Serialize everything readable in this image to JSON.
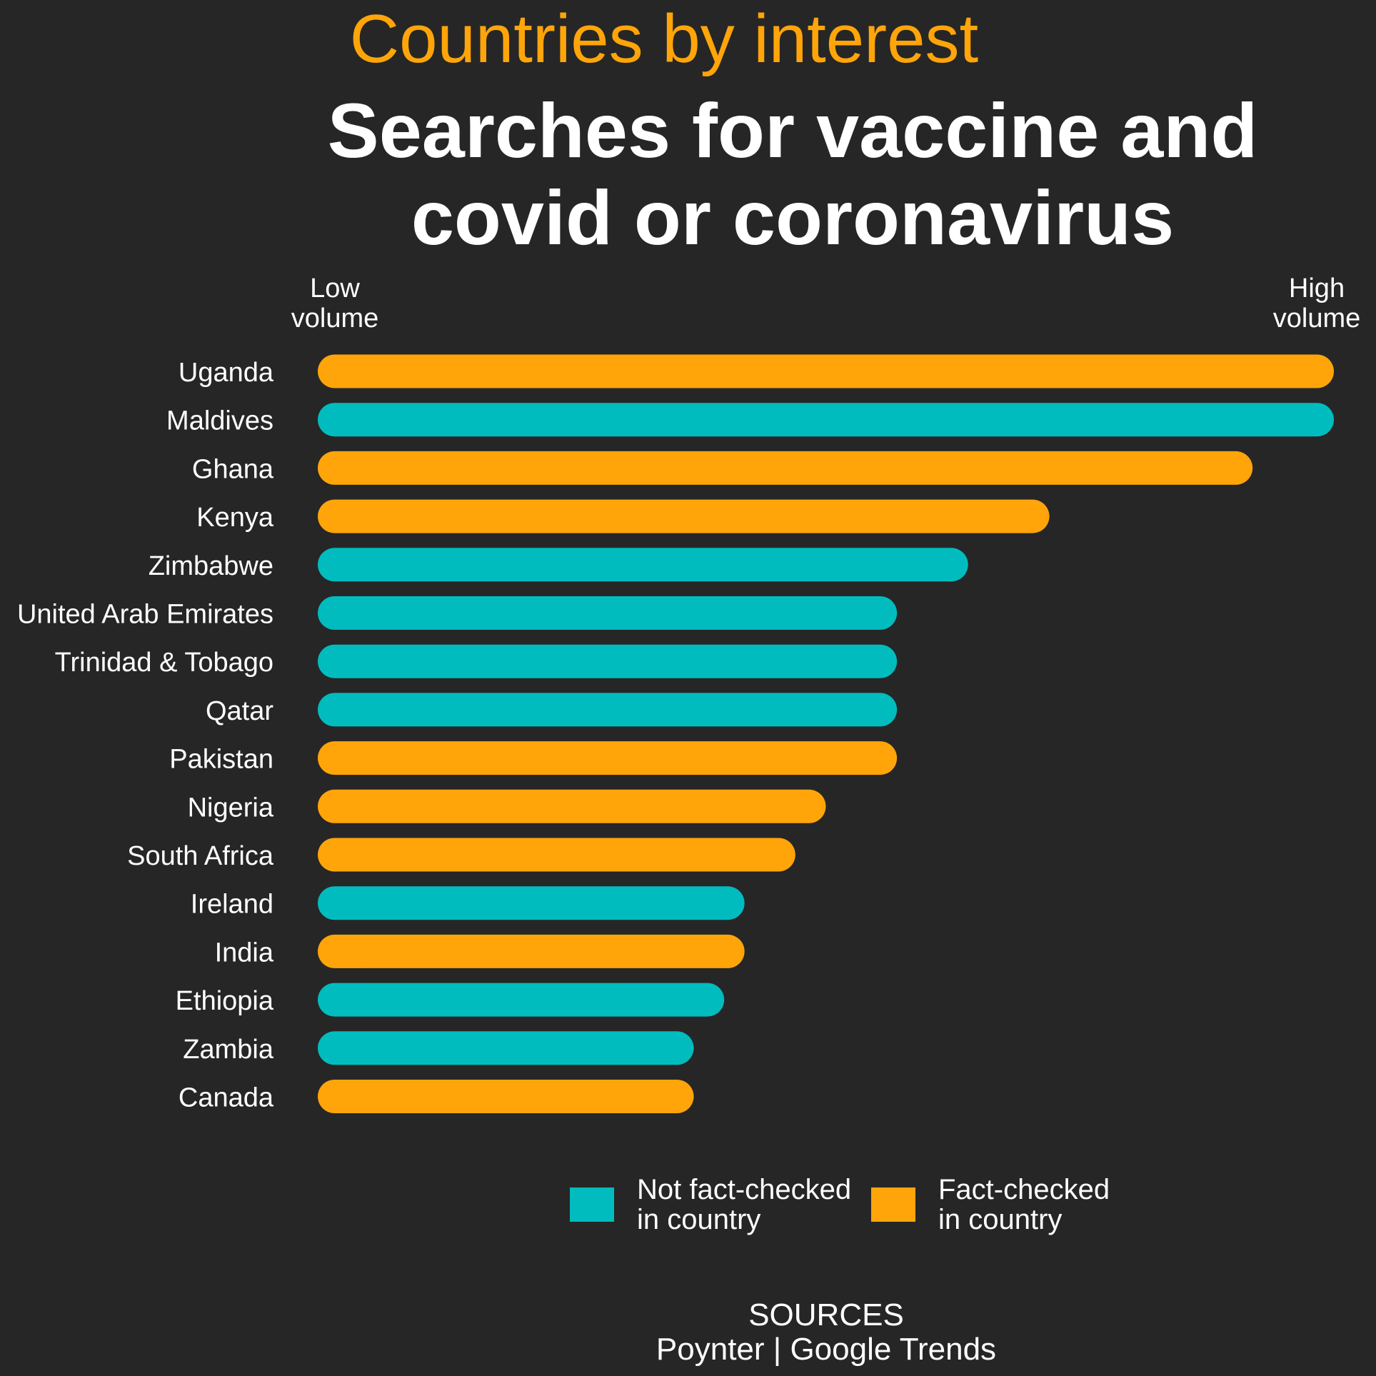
{
  "header": {
    "kicker": "Countries by interest",
    "title_line1": "Searches for vaccine and",
    "title_line2": "covid or coronavirus"
  },
  "chart_data": {
    "type": "bar",
    "orientation": "horizontal",
    "axis_labels": {
      "low_line1": "Low",
      "low_line2": "volume",
      "high_line1": "High",
      "high_line2": "volume"
    },
    "xlim": [
      0,
      100
    ],
    "categories": [
      "Uganda",
      "Maldives",
      "Ghana",
      "Kenya",
      "Zimbabwe",
      "United Arab Emirates",
      "Trinidad & Tobago",
      "Qatar",
      "Pakistan",
      "Nigeria",
      "South Africa",
      "Ireland",
      "India",
      "Ethiopia",
      "Zambia",
      "Canada"
    ],
    "values": [
      100,
      100,
      92,
      72,
      64,
      57,
      57,
      57,
      57,
      50,
      47,
      42,
      42,
      40,
      37,
      37
    ],
    "groups": [
      "fact-checked",
      "not-fact-checked",
      "fact-checked",
      "fact-checked",
      "not-fact-checked",
      "not-fact-checked",
      "not-fact-checked",
      "not-fact-checked",
      "fact-checked",
      "fact-checked",
      "fact-checked",
      "not-fact-checked",
      "fact-checked",
      "not-fact-checked",
      "not-fact-checked",
      "fact-checked"
    ],
    "colors": {
      "not-fact-checked": "#00bcbe",
      "fact-checked": "#ffa50a"
    },
    "legend": [
      {
        "key": "not-fact-checked",
        "line1": "Not fact-checked",
        "line2": "in country"
      },
      {
        "key": "fact-checked",
        "line1": "Fact-checked",
        "line2": "in country"
      }
    ],
    "legend_position": "bottom",
    "grid": false
  },
  "sources": {
    "label": "SOURCES",
    "text": "Poynter | Google Trends"
  }
}
